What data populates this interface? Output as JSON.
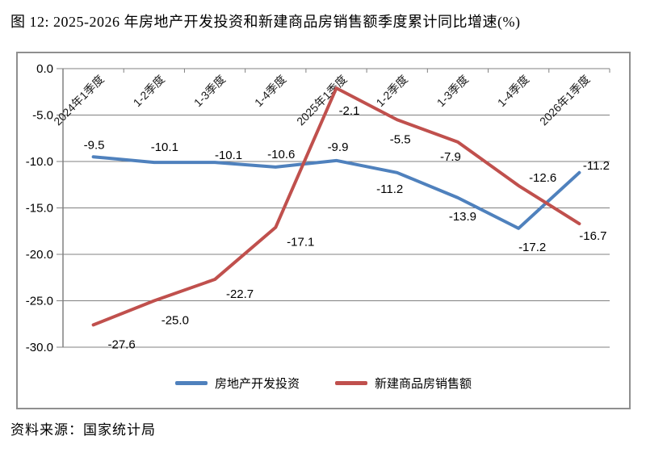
{
  "page": {
    "title": "图 12: 2025-2026 年房地产开发投资和新建商品房销售额季度累计同比增速(%)",
    "source": "资料来源：国家统计局"
  },
  "chart_data": {
    "type": "line",
    "categories": [
      "2024年1季度",
      "1-2季度",
      "1-3季度",
      "1-4季度",
      "2025年1季度",
      "1-2季度",
      "1-3季度",
      "1-4季度",
      "2026年1季度"
    ],
    "series": [
      {
        "name": "房地产开发投资",
        "color": "#4F81BD",
        "values": [
          -9.5,
          -10.1,
          -10.1,
          -10.6,
          -9.9,
          -11.2,
          -13.9,
          -17.2,
          -11.2
        ]
      },
      {
        "name": "新建商品房销售额",
        "color": "#C0504D",
        "values": [
          -27.6,
          -25.0,
          -22.7,
          -17.1,
          -2.1,
          -5.5,
          -7.9,
          -12.6,
          -16.7
        ]
      }
    ],
    "ylim": [
      -30,
      0
    ],
    "ytick_step": 5,
    "ytick_labels": [
      "0.0",
      "-5.0",
      "-10.0",
      "-15.0",
      "-20.0",
      "-25.0",
      "-30.0"
    ],
    "grid": true,
    "legend_position": "bottom",
    "axis_color": "#808080",
    "label_color": "#000000",
    "xlabel": "",
    "ylabel": ""
  }
}
